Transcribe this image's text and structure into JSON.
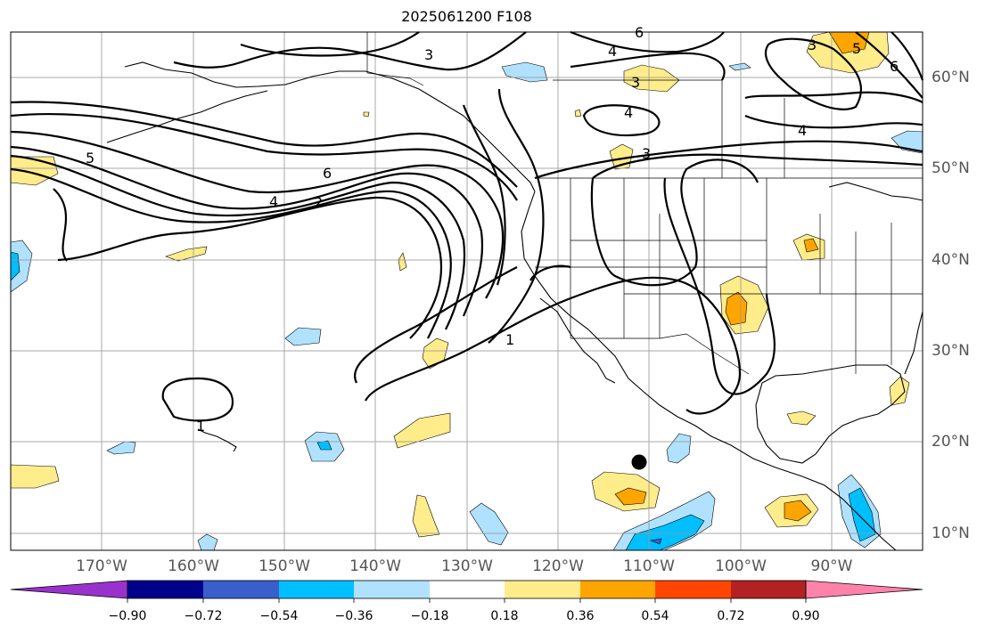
{
  "title": "2025061200 F108",
  "lon_labels": [
    "170°W",
    "160°W",
    "150°W",
    "140°W",
    "130°W",
    "120°W",
    "110°W",
    "100°W",
    "90°W"
  ],
  "lat_labels": [
    "60°N",
    "50°N",
    "40°N",
    "30°N",
    "20°N",
    "10°N"
  ],
  "colorbar": {
    "ticks": [
      "−0.90",
      "−0.72",
      "−0.54",
      "−0.36",
      "−0.18",
      "0.18",
      "0.36",
      "0.54",
      "0.72",
      "0.90"
    ],
    "colors": [
      "#9932cc",
      "#00008b",
      "#3a5fcd",
      "#00bfff",
      "#b0e2ff",
      "#ffffff",
      "#ffec8b",
      "#ffa500",
      "#ff4500",
      "#b22222",
      "#ff82ab"
    ]
  },
  "contour_labels": [
    "5",
    "3",
    "4",
    "3",
    "4",
    "3",
    "5",
    "6",
    "6",
    "4",
    "3",
    "4",
    "2",
    "6",
    "1",
    "1"
  ],
  "colors": {
    "fill_yellow": "#ffec8b",
    "fill_orange": "#ffa500",
    "fill_lightblue": "#b0e2ff",
    "fill_blue": "#00bfff",
    "fill_royal": "#3a5fcd"
  }
}
